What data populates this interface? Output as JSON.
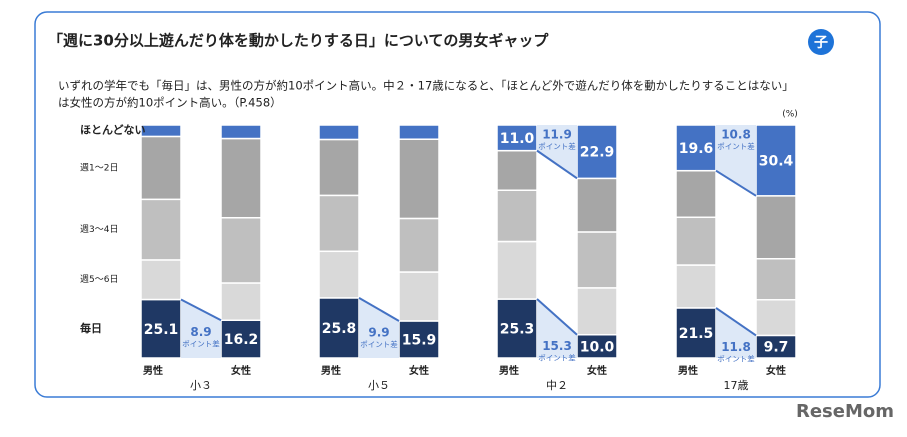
{
  "header": {
    "title": "「週に30分以上遊んだり体を動かしたりする日」についての男女ギャップ",
    "badge": "子",
    "note_lines": [
      "いずれの学年でも「毎日」は、男性の方が約10ポイント高い。中２・17歳になると、「ほとんど外で遊んだり体を動かしたりすることはない」",
      "は女性の方が約10ポイント高い。（P.458）"
    ]
  },
  "chart_data": {
    "type": "stacked_bar",
    "unit": "(%)",
    "ylim": [
      0,
      100
    ],
    "groups": [
      "小３",
      "小５",
      "中２",
      "17歳"
    ],
    "categories": [
      "男性",
      "女性",
      "男性",
      "女性",
      "男性",
      "女性",
      "男性",
      "女性"
    ],
    "gap_label": "ポイント差",
    "series": [
      {
        "name": "毎日",
        "color": "#1f3864",
        "values": [
          25.1,
          16.2,
          25.8,
          15.9,
          25.3,
          10.0,
          21.5,
          9.7
        ],
        "value_labels": [
          "25.1",
          "16.2",
          "25.8",
          "15.9",
          "25.3",
          "10.0",
          "21.5",
          "9.7"
        ],
        "gaps": [
          8.9,
          9.9,
          15.3,
          11.8
        ]
      },
      {
        "name": "週5～6日",
        "color": "#d9d9d9",
        "values": [
          17,
          16,
          20,
          21,
          24.7,
          20.1,
          18.4,
          15.3
        ]
      },
      {
        "name": "週3～4日",
        "color": "#bfbfbf",
        "values": [
          26,
          28,
          24,
          23,
          22,
          24,
          20.5,
          17.6
        ]
      },
      {
        "name": "週1～2日",
        "color": "#a6a6a6",
        "values": [
          27,
          34,
          24,
          34,
          17,
          23,
          20,
          27
        ]
      },
      {
        "name": "ほとんどない",
        "color": "#4472c4",
        "values": [
          4.9,
          5.8,
          6.2,
          6.1,
          11.0,
          22.9,
          19.6,
          30.4
        ],
        "value_labels": [
          null,
          null,
          null,
          null,
          "11.0",
          "22.9",
          "19.6",
          "30.4"
        ],
        "gaps": [
          null,
          null,
          11.9,
          10.8
        ]
      }
    ]
  },
  "footer": {
    "logo": "ReseMom"
  }
}
